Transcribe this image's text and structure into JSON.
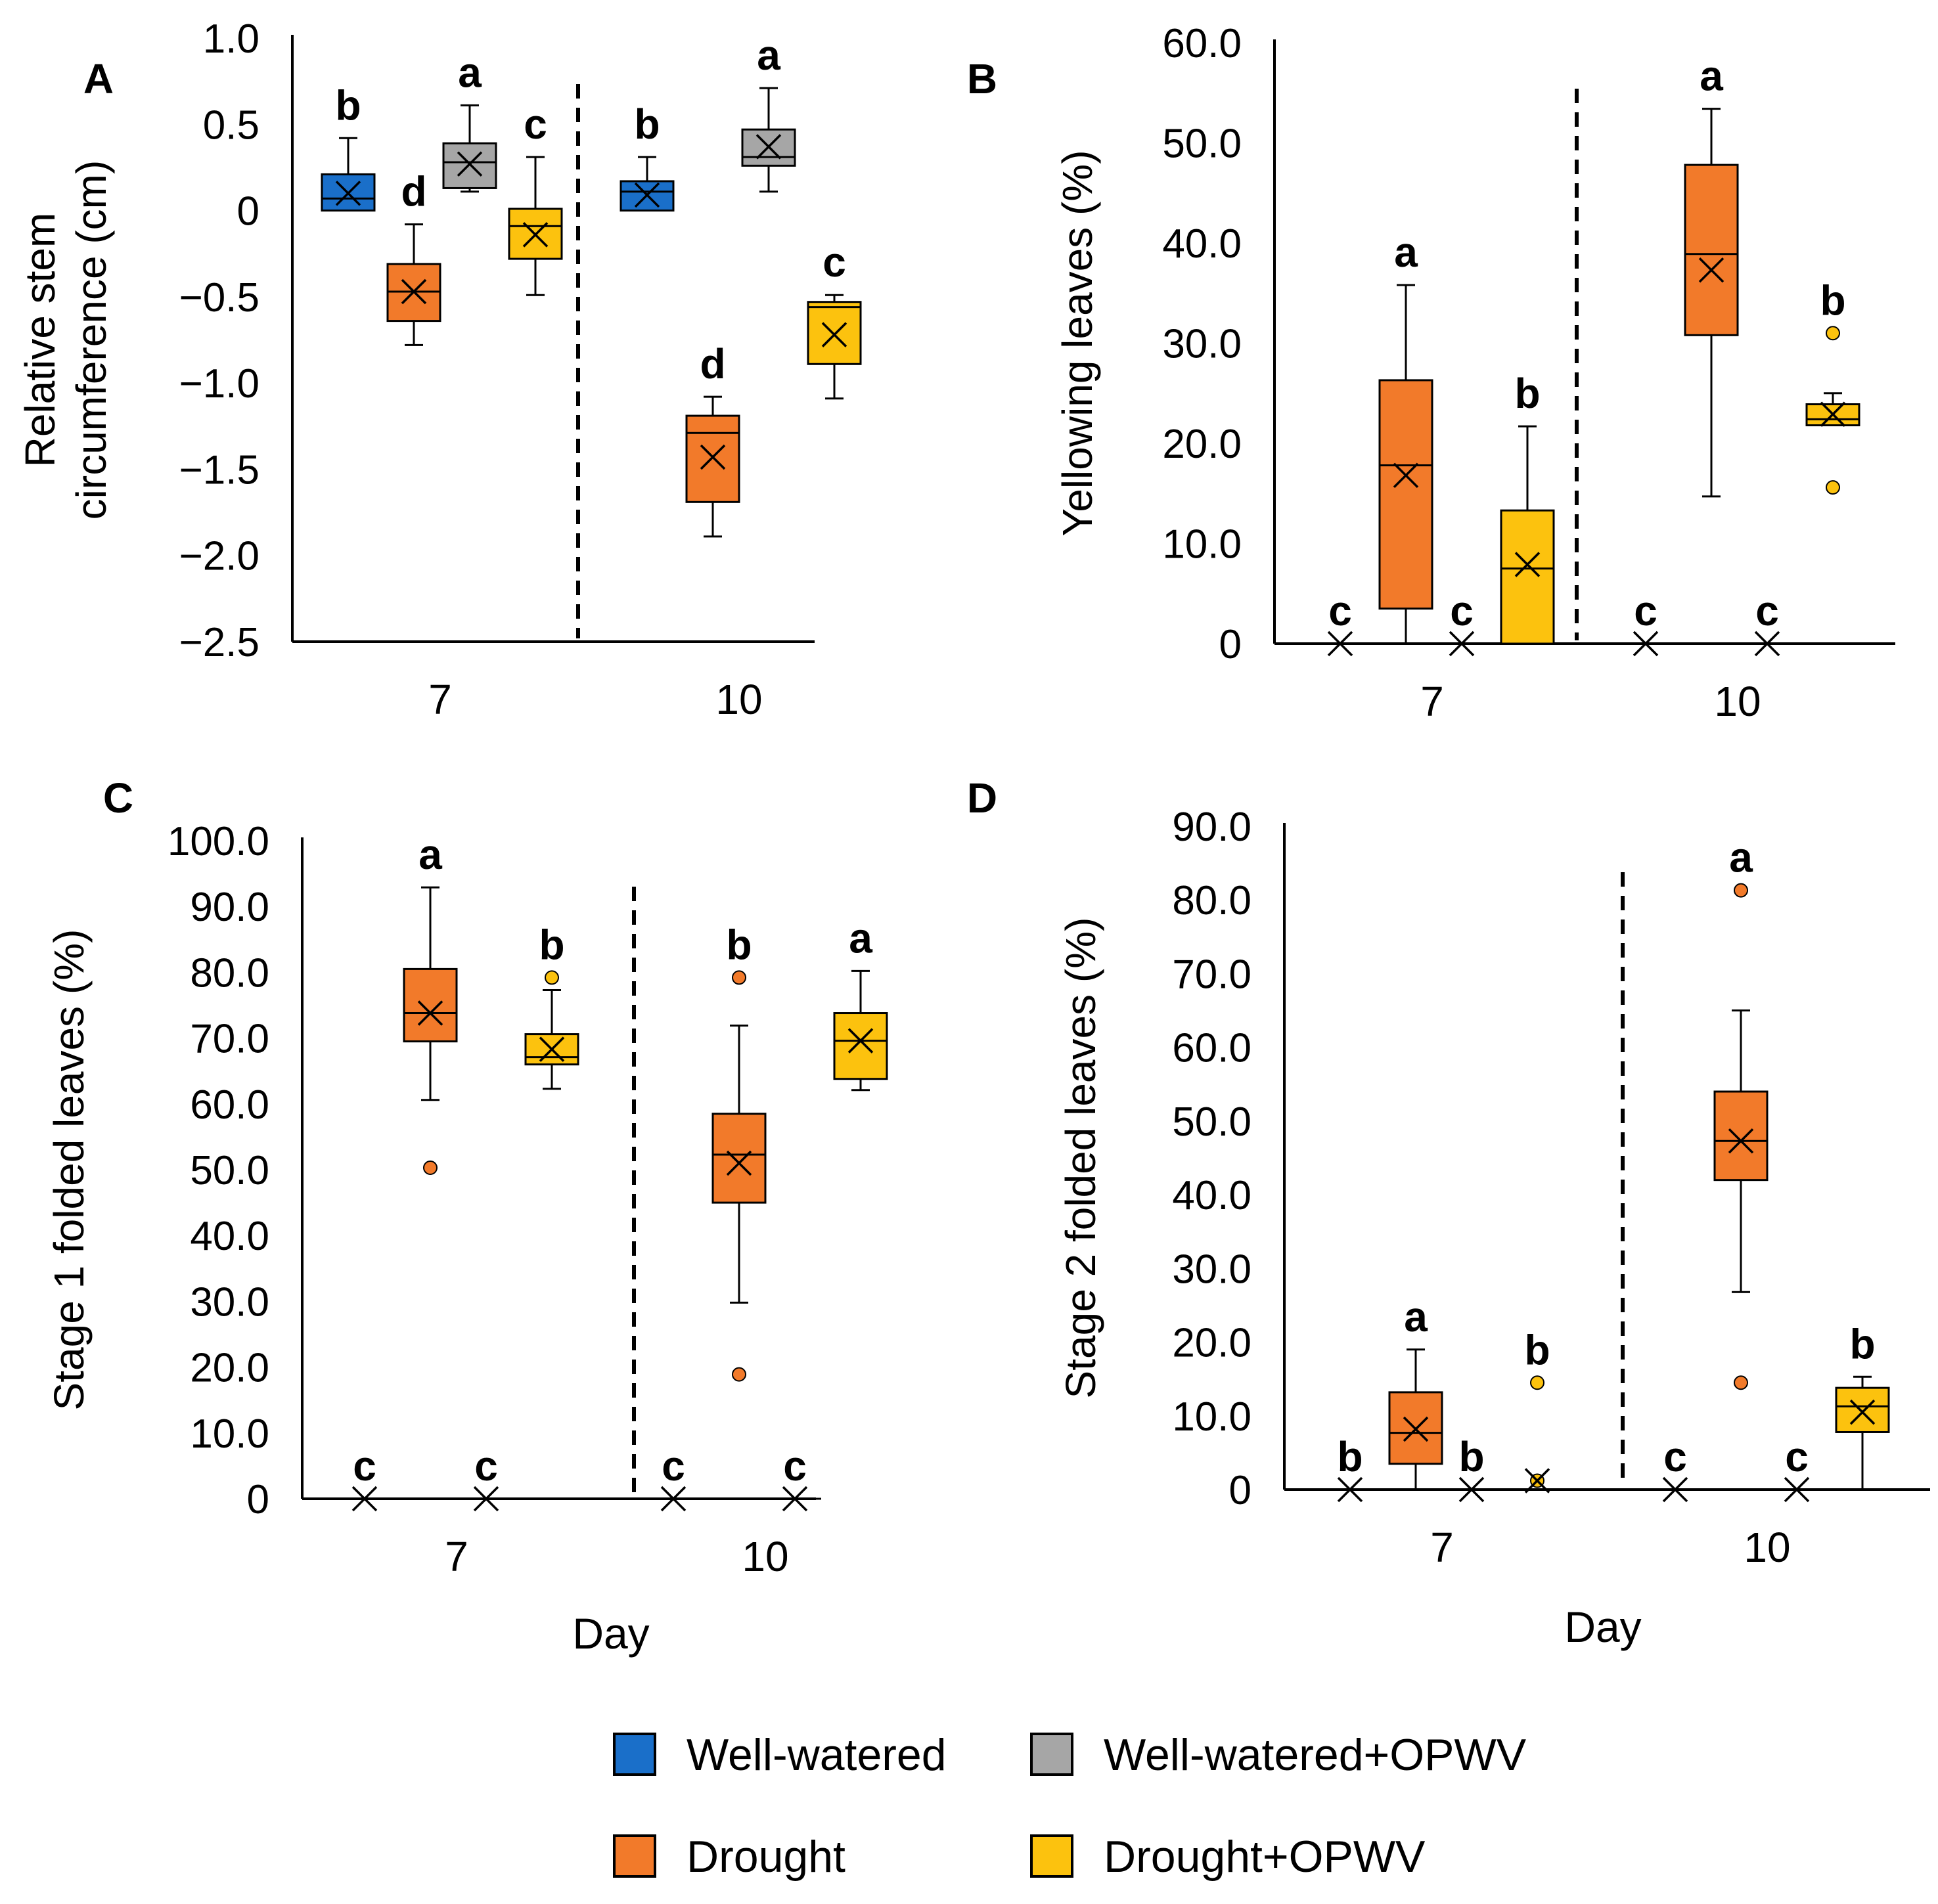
{
  "legend": {
    "items": [
      {
        "label": "Well-watered",
        "color": "#1a6fc9"
      },
      {
        "label": "Well-watered+OPWV",
        "color": "#a6a6a6"
      },
      {
        "label": "Drought",
        "color": "#f27a2a"
      },
      {
        "label": "Drought+OPWV",
        "color": "#fcc20e"
      }
    ]
  },
  "chart_data": [
    {
      "type": "box",
      "panel": "A",
      "ylabel_lines": [
        "Relative stem",
        "circumference (cm)"
      ],
      "xlabel": "",
      "ylim": [
        -2.5,
        1.0
      ],
      "yticks": [
        "1.0",
        "0.5",
        "0",
        "−2.0",
        "−2.5"
      ],
      "yticks_numeric": [
        1.0,
        0.5,
        0,
        -2.0,
        -2.5
      ],
      "extra_yticks": [
        "−0.5",
        "−1.0",
        "−1.5"
      ],
      "extra_yticks_numeric": [
        -0.5,
        -1.0,
        -1.5
      ],
      "categories": [
        "7",
        "10"
      ],
      "series": [
        {
          "name": "Well-watered",
          "color": "#1a6fc9",
          "boxes": [
            {
              "day": "7",
              "q1": 0.0,
              "median": 0.07,
              "q3": 0.21,
              "min": 0.0,
              "max": 0.42,
              "mean": 0.1,
              "letter": "b",
              "outliers": []
            },
            {
              "day": "10",
              "q1": 0.0,
              "median": 0.11,
              "q3": 0.17,
              "min": 0.0,
              "max": 0.31,
              "mean": 0.09,
              "letter": "b",
              "outliers": []
            }
          ]
        },
        {
          "name": "Drought",
          "color": "#f27a2a",
          "boxes": [
            {
              "day": "7",
              "q1": -0.64,
              "median": -0.47,
              "q3": -0.31,
              "min": -0.78,
              "max": -0.08,
              "mean": -0.47,
              "letter": "d",
              "outliers": []
            },
            {
              "day": "10",
              "q1": -1.69,
              "median": -1.29,
              "q3": -1.19,
              "min": -1.89,
              "max": -1.08,
              "mean": -1.43,
              "letter": "d",
              "outliers": []
            }
          ]
        },
        {
          "name": "Well-watered+OPWV",
          "color": "#a6a6a6",
          "boxes": [
            {
              "day": "7",
              "q1": 0.13,
              "median": 0.28,
              "q3": 0.39,
              "min": 0.11,
              "max": 0.61,
              "mean": 0.27,
              "letter": "a",
              "outliers": []
            },
            {
              "day": "10",
              "q1": 0.26,
              "median": 0.31,
              "q3": 0.47,
              "min": 0.11,
              "max": 0.71,
              "mean": 0.37,
              "letter": "a",
              "outliers": []
            }
          ]
        },
        {
          "name": "Drought+OPWV",
          "color": "#fcc20e",
          "boxes": [
            {
              "day": "7",
              "q1": -0.28,
              "median": -0.09,
              "q3": 0.01,
              "min": -0.49,
              "max": 0.31,
              "mean": -0.14,
              "letter": "c",
              "outliers": []
            },
            {
              "day": "10",
              "q1": -0.89,
              "median": -0.56,
              "q3": -0.53,
              "min": -1.09,
              "max": -0.49,
              "mean": -0.72,
              "letter": "c",
              "outliers": []
            }
          ]
        }
      ]
    },
    {
      "type": "box",
      "panel": "B",
      "ylabel_lines": [
        "Yellowing leaves (%)"
      ],
      "xlabel": "",
      "ylim": [
        0,
        60
      ],
      "yticks": [
        "60.0",
        "50.0",
        "40.0",
        "30.0",
        "20.0",
        "10.0",
        "0"
      ],
      "yticks_numeric": [
        60,
        50,
        40,
        30,
        20,
        10,
        0
      ],
      "categories": [
        "7",
        "10"
      ],
      "series": [
        {
          "name": "Well-watered",
          "color": "#1a6fc9",
          "boxes": [
            {
              "day": "7",
              "q1": 0,
              "median": 0,
              "q3": 0,
              "min": 0,
              "max": 0,
              "mean": 0,
              "letter": "c",
              "outliers": []
            },
            {
              "day": "10",
              "q1": 0,
              "median": 0,
              "q3": 0,
              "min": 0,
              "max": 0,
              "mean": 0,
              "letter": "c",
              "outliers": []
            }
          ]
        },
        {
          "name": "Drought",
          "color": "#f27a2a",
          "boxes": [
            {
              "day": "7",
              "q1": 3.5,
              "median": 17.8,
              "q3": 26.3,
              "min": 0,
              "max": 35.8,
              "mean": 16.8,
              "letter": "a",
              "outliers": []
            },
            {
              "day": "10",
              "q1": 30.8,
              "median": 38.9,
              "q3": 47.8,
              "min": 14.7,
              "max": 53.4,
              "mean": 37.3,
              "letter": "a",
              "outliers": []
            }
          ]
        },
        {
          "name": "Well-watered+OPWV",
          "color": "#a6a6a6",
          "boxes": [
            {
              "day": "7",
              "q1": 0,
              "median": 0,
              "q3": 0,
              "min": 0,
              "max": 0,
              "mean": 0,
              "letter": "c",
              "outliers": []
            },
            {
              "day": "10",
              "q1": 0,
              "median": 0,
              "q3": 0,
              "min": 0,
              "max": 0,
              "mean": 0,
              "letter": "c",
              "outliers": []
            }
          ]
        },
        {
          "name": "Drought+OPWV",
          "color": "#fcc20e",
          "boxes": [
            {
              "day": "7",
              "q1": 0,
              "median": 7.5,
              "q3": 13.3,
              "min": 0,
              "max": 21.7,
              "mean": 7.9,
              "letter": "b",
              "outliers": []
            },
            {
              "day": "10",
              "q1": 21.8,
              "median": 22.4,
              "q3": 23.9,
              "min": 21.8,
              "max": 25.0,
              "mean": 22.9,
              "letter": "b",
              "outliers": [
                31.0,
                15.6
              ]
            }
          ]
        }
      ]
    },
    {
      "type": "box",
      "panel": "C",
      "ylabel_lines": [
        "Stage 1 folded leaves (%)"
      ],
      "xlabel": "Day",
      "ylim": [
        0,
        100
      ],
      "yticks": [
        "100.0",
        "90.0",
        "80.0",
        "70.0",
        "60.0",
        "50.0",
        "40.0",
        "30.0",
        "20.0",
        "10.0",
        "0"
      ],
      "yticks_numeric": [
        100,
        90,
        80,
        70,
        60,
        50,
        40,
        30,
        20,
        10,
        0
      ],
      "categories": [
        "7",
        "10"
      ],
      "series": [
        {
          "name": "Well-watered",
          "color": "#1a6fc9",
          "boxes": [
            {
              "day": "7",
              "q1": 0,
              "median": 0,
              "q3": 0,
              "min": 0,
              "max": 0,
              "mean": 0,
              "letter": "c",
              "outliers": []
            },
            {
              "day": "10",
              "q1": 0,
              "median": 0,
              "q3": 0,
              "min": 0,
              "max": 0,
              "mean": 0,
              "letter": "c",
              "outliers": []
            }
          ]
        },
        {
          "name": "Drought",
          "color": "#f27a2a",
          "boxes": [
            {
              "day": "7",
              "q1": 69.5,
              "median": 73.8,
              "q3": 80.5,
              "min": 60.6,
              "max": 92.9,
              "mean": 73.8,
              "letter": "a",
              "outliers": [
                50.3
              ]
            },
            {
              "day": "10",
              "q1": 45.0,
              "median": 52.3,
              "q3": 58.5,
              "min": 29.8,
              "max": 71.9,
              "mean": 51.0,
              "letter": "b",
              "outliers": [
                79.2,
                18.9
              ]
            }
          ]
        },
        {
          "name": "Well-watered+OPWV",
          "color": "#a6a6a6",
          "boxes": [
            {
              "day": "7",
              "q1": 0,
              "median": 0,
              "q3": 0,
              "min": 0,
              "max": 0,
              "mean": 0,
              "letter": "c",
              "outliers": []
            },
            {
              "day": "10",
              "q1": 0,
              "median": 0,
              "q3": 0,
              "min": 0,
              "max": 0,
              "mean": 0,
              "letter": "c",
              "outliers": []
            }
          ]
        },
        {
          "name": "Drought+OPWV",
          "color": "#fcc20e",
          "boxes": [
            {
              "day": "7",
              "q1": 66.0,
              "median": 67.1,
              "q3": 70.6,
              "min": 62.3,
              "max": 77.3,
              "mean": 68.3,
              "letter": "b",
              "outliers": [
                79.2
              ]
            },
            {
              "day": "10",
              "q1": 63.8,
              "median": 69.6,
              "q3": 73.8,
              "min": 62.1,
              "max": 80.2,
              "mean": 69.6,
              "letter": "a",
              "outliers": []
            }
          ]
        }
      ]
    },
    {
      "type": "box",
      "panel": "D",
      "ylabel_lines": [
        "Stage 2 folded leaves (%)"
      ],
      "xlabel": "Day",
      "ylim": [
        0,
        90
      ],
      "yticks": [
        "90.0",
        "80.0",
        "70.0",
        "60.0",
        "50.0",
        "40.0",
        "30.0",
        "20.0",
        "10.0",
        "0"
      ],
      "yticks_numeric": [
        90,
        80,
        70,
        60,
        50,
        40,
        30,
        20,
        10,
        0
      ],
      "categories": [
        "7",
        "10"
      ],
      "series": [
        {
          "name": "Well-watered",
          "color": "#1a6fc9",
          "boxes": [
            {
              "day": "7",
              "q1": 0,
              "median": 0,
              "q3": 0,
              "min": 0,
              "max": 0,
              "mean": 0,
              "letter": "b",
              "outliers": []
            },
            {
              "day": "10",
              "q1": 0,
              "median": 0,
              "q3": 0,
              "min": 0,
              "max": 0,
              "mean": 0,
              "letter": "c",
              "outliers": []
            }
          ]
        },
        {
          "name": "Drought",
          "color": "#f27a2a",
          "boxes": [
            {
              "day": "7",
              "q1": 3.5,
              "median": 7.7,
              "q3": 13.2,
              "min": 0,
              "max": 19.0,
              "mean": 8.2,
              "letter": "a",
              "outliers": []
            },
            {
              "day": "10",
              "q1": 42.0,
              "median": 47.3,
              "q3": 54.0,
              "min": 26.8,
              "max": 65.0,
              "mean": 47.3,
              "letter": "a",
              "outliers": [
                81.3,
                14.5
              ]
            }
          ]
        },
        {
          "name": "Well-watered+OPWV",
          "color": "#a6a6a6",
          "boxes": [
            {
              "day": "7",
              "q1": 0,
              "median": 0,
              "q3": 0,
              "min": 0,
              "max": 0,
              "mean": 0,
              "letter": "b",
              "outliers": []
            },
            {
              "day": "10",
              "q1": 0,
              "median": 0,
              "q3": 0,
              "min": 0,
              "max": 0,
              "mean": 0,
              "letter": "c",
              "outliers": []
            }
          ]
        },
        {
          "name": "Drought+OPWV",
          "color": "#fcc20e",
          "boxes": [
            {
              "day": "7",
              "q1": 0,
              "median": 0,
              "q3": 0,
              "min": 0,
              "max": 0,
              "mean": 1.2,
              "letter": "b",
              "outliers": [
                14.5,
                1.2
              ]
            },
            {
              "day": "10",
              "q1": 7.8,
              "median": 11.3,
              "q3": 13.8,
              "min": 0,
              "max": 15.3,
              "mean": 10.5,
              "letter": "b",
              "outliers": []
            }
          ]
        }
      ]
    }
  ]
}
